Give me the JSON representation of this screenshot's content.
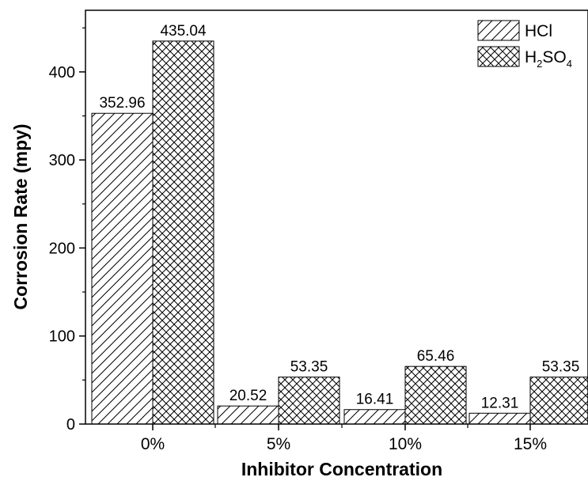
{
  "chart_data": {
    "type": "bar",
    "title": "",
    "xlabel": "Inhibitor Concentration",
    "ylabel": "Corrosion Rate (mpy)",
    "categories": [
      "0%",
      "5%",
      "10%",
      "15%"
    ],
    "ylim": [
      0,
      470
    ],
    "yticks": [
      0,
      100,
      200,
      300,
      400
    ],
    "grid": false,
    "legend_position": "top-right",
    "series": [
      {
        "name": "HCl",
        "values": [
          352.96,
          20.52,
          16.41,
          12.31
        ],
        "labels": [
          "352.96",
          "20.52",
          "16.41",
          "12.31"
        ],
        "pattern": "diagonal-hatch"
      },
      {
        "name": "H2SO4",
        "name_parts": {
          "a": "H",
          "b": "2",
          "c": "SO",
          "d": "4"
        },
        "values": [
          435.04,
          53.35,
          65.46,
          53.35
        ],
        "labels": [
          "435.04",
          "53.35",
          "65.46",
          "53.35"
        ],
        "pattern": "cross-hatch"
      }
    ]
  }
}
